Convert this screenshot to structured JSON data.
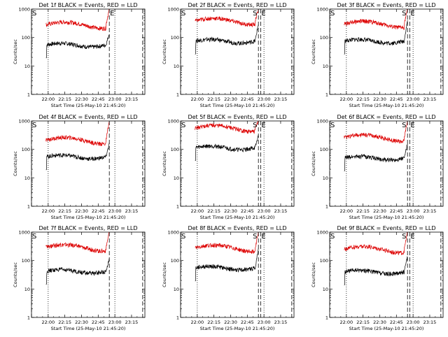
{
  "chart_data": [
    {
      "type": "line",
      "title": "Det 1f BLACK = Events, RED = LLD",
      "xlabel": "Start Time (25-May-10 21:45:20)",
      "ylabel": "Counts/sec",
      "yscale": "log",
      "ylim": [
        1,
        1000
      ],
      "xlim": [
        "21:45",
        "23:27"
      ],
      "x_ticks": [
        "22:00",
        "22:15",
        "22:30",
        "22:45",
        "23:00",
        "23:15"
      ],
      "y_ticks": [
        "1",
        "10",
        "100",
        "1000"
      ],
      "series": [
        {
          "name": "Events",
          "color": "#000000",
          "base": 55,
          "end_value": 140
        },
        {
          "name": "LLD",
          "color": "#dd0000",
          "base": 280,
          "end_value": 1000
        }
      ],
      "markers": [
        {
          "label": "S",
          "time": "21:45",
          "style": "dashed"
        },
        {
          "label": "E",
          "time": "22:55",
          "style": "dashed"
        },
        {
          "time": "22:00",
          "style": "dotted"
        },
        {
          "time": "23:00",
          "style": "dotted"
        },
        {
          "time": "23:25",
          "style": "dashed"
        }
      ]
    },
    {
      "type": "line",
      "title": "Det 2f BLACK = Events, RED = LLD",
      "xlabel": "Start Time (25-May-10 21:45:20)",
      "ylabel": "Counts/sec",
      "yscale": "log",
      "ylim": [
        1,
        1000
      ],
      "xlim": [
        "21:45",
        "23:27"
      ],
      "x_ticks": [
        "22:00",
        "22:15",
        "22:30",
        "22:45",
        "23:00",
        "23:15"
      ],
      "y_ticks": [
        "1",
        "10",
        "100",
        "1000"
      ],
      "series": [
        {
          "name": "Events",
          "color": "#000000",
          "base": 75,
          "end_value": 300
        },
        {
          "name": "LLD",
          "color": "#dd0000",
          "base": 380,
          "end_value": 1000
        }
      ],
      "markers": [
        {
          "label": "S",
          "time": "21:45",
          "style": "dashed"
        },
        {
          "label": "S",
          "time": "22:55",
          "style": "dashed"
        },
        {
          "label": "E",
          "time": "22:57",
          "style": "dashed"
        },
        {
          "time": "22:00",
          "style": "dotted"
        },
        {
          "time": "23:00",
          "style": "dotted"
        },
        {
          "time": "23:25",
          "style": "dashed"
        }
      ]
    },
    {
      "type": "line",
      "title": "Det 3f BLACK = Events, RED = LLD",
      "xlabel": "Start Time (25-May-10 21:45:20)",
      "ylabel": "Counts/sec",
      "yscale": "log",
      "ylim": [
        1,
        1000
      ],
      "xlim": [
        "21:45",
        "23:27"
      ],
      "x_ticks": [
        "22:00",
        "22:15",
        "22:30",
        "22:45",
        "23:00",
        "23:15"
      ],
      "y_ticks": [
        "1",
        "10",
        "100",
        "1000"
      ],
      "series": [
        {
          "name": "Events",
          "color": "#000000",
          "base": 75,
          "end_value": 400
        },
        {
          "name": "LLD",
          "color": "#dd0000",
          "base": 300,
          "end_value": 1000
        }
      ],
      "markers": [
        {
          "label": "S",
          "time": "21:45",
          "style": "dashed"
        },
        {
          "label": "S",
          "time": "22:55",
          "style": "dashed"
        },
        {
          "label": "E",
          "time": "22:57",
          "style": "dashed"
        },
        {
          "time": "22:00",
          "style": "dotted"
        },
        {
          "time": "23:00",
          "style": "dotted"
        },
        {
          "time": "23:25",
          "style": "dashed"
        }
      ]
    },
    {
      "type": "line",
      "title": "Det 4f BLACK = Events, RED = LLD",
      "xlabel": "Start Time (25-May-10 21:45:20)",
      "ylabel": "Counts/sec",
      "yscale": "log",
      "ylim": [
        1,
        1000
      ],
      "xlim": [
        "21:45",
        "23:27"
      ],
      "x_ticks": [
        "22:00",
        "22:15",
        "22:30",
        "22:45",
        "23:00",
        "23:15"
      ],
      "y_ticks": [
        "1",
        "10",
        "100",
        "1000"
      ],
      "series": [
        {
          "name": "Events",
          "color": "#000000",
          "base": 55,
          "end_value": 160
        },
        {
          "name": "LLD",
          "color": "#dd0000",
          "base": 210,
          "end_value": 1000
        }
      ],
      "markers": [
        {
          "label": "S",
          "time": "21:45",
          "style": "dashed"
        },
        {
          "time": "22:55",
          "style": "dashed"
        },
        {
          "time": "22:00",
          "style": "dotted"
        },
        {
          "time": "23:00",
          "style": "dotted"
        },
        {
          "time": "23:25",
          "style": "dashed"
        }
      ]
    },
    {
      "type": "line",
      "title": "Det 5f BLACK = Events, RED = LLD",
      "xlabel": "Start Time (25-May-10 21:45:20)",
      "ylabel": "Counts/sec",
      "yscale": "log",
      "ylim": [
        1,
        1000
      ],
      "xlim": [
        "21:45",
        "23:27"
      ],
      "x_ticks": [
        "22:00",
        "22:15",
        "22:30",
        "22:45",
        "23:00",
        "23:15"
      ],
      "y_ticks": [
        "1",
        "10",
        "100",
        "1000"
      ],
      "series": [
        {
          "name": "Events",
          "color": "#000000",
          "base": 115,
          "end_value": 300
        },
        {
          "name": "LLD",
          "color": "#dd0000",
          "base": 560,
          "end_value": 1000
        }
      ],
      "markers": [
        {
          "label": "S",
          "time": "21:45",
          "style": "dashed"
        },
        {
          "label": "S",
          "time": "22:55",
          "style": "dashed"
        },
        {
          "label": "E",
          "time": "22:57",
          "style": "dashed"
        },
        {
          "time": "22:00",
          "style": "dotted"
        },
        {
          "time": "23:00",
          "style": "dotted"
        },
        {
          "time": "23:25",
          "style": "dashed"
        }
      ]
    },
    {
      "type": "line",
      "title": "Det 6f BLACK = Events, RED = LLD",
      "xlabel": "Start Time (25-May-10 21:45:20)",
      "ylabel": "Counts/sec",
      "yscale": "log",
      "ylim": [
        1,
        1000
      ],
      "xlim": [
        "21:45",
        "23:27"
      ],
      "x_ticks": [
        "22:00",
        "22:15",
        "22:30",
        "22:45",
        "23:00",
        "23:15"
      ],
      "y_ticks": [
        "1",
        "10",
        "100",
        "1000"
      ],
      "series": [
        {
          "name": "Events",
          "color": "#000000",
          "base": 50,
          "end_value": 160
        },
        {
          "name": "LLD",
          "color": "#dd0000",
          "base": 260,
          "end_value": 1000
        }
      ],
      "markers": [
        {
          "label": "S",
          "time": "21:45",
          "style": "dashed"
        },
        {
          "label": "S",
          "time": "22:55",
          "style": "dashed"
        },
        {
          "label": "E",
          "time": "22:57",
          "style": "dashed"
        },
        {
          "time": "22:00",
          "style": "dotted"
        },
        {
          "time": "23:00",
          "style": "dotted"
        },
        {
          "time": "23:25",
          "style": "dashed"
        }
      ]
    },
    {
      "type": "line",
      "title": "Det 7f BLACK = Events, RED = LLD",
      "xlabel": "Start Time (25-May-10 21:45:20)",
      "ylabel": "Counts/sec",
      "yscale": "log",
      "ylim": [
        1,
        1000
      ],
      "xlim": [
        "21:45",
        "23:27"
      ],
      "x_ticks": [
        "22:00",
        "22:15",
        "22:30",
        "22:45",
        "23:00",
        "23:15"
      ],
      "y_ticks": [
        "1",
        "10",
        "100",
        "1000"
      ],
      "series": [
        {
          "name": "Events",
          "color": "#000000",
          "base": 42,
          "end_value": 120
        },
        {
          "name": "LLD",
          "color": "#dd0000",
          "base": 290,
          "end_value": 1000
        }
      ],
      "markers": [
        {
          "label": "S",
          "time": "21:45",
          "style": "dashed"
        },
        {
          "time": "22:55",
          "style": "dashed"
        },
        {
          "time": "22:00",
          "style": "dotted"
        },
        {
          "time": "23:00",
          "style": "dotted"
        },
        {
          "time": "23:25",
          "style": "dashed"
        }
      ]
    },
    {
      "type": "line",
      "title": "Det 8f BLACK = Events, RED = LLD",
      "xlabel": "Start Time (25-May-10 21:45:20)",
      "ylabel": "Counts/sec",
      "yscale": "log",
      "ylim": [
        1,
        1000
      ],
      "xlim": [
        "21:45",
        "23:27"
      ],
      "x_ticks": [
        "22:00",
        "22:15",
        "22:30",
        "22:45",
        "23:00",
        "23:15"
      ],
      "y_ticks": [
        "1",
        "10",
        "100",
        "1000"
      ],
      "series": [
        {
          "name": "Events",
          "color": "#000000",
          "base": 55,
          "end_value": 250
        },
        {
          "name": "LLD",
          "color": "#dd0000",
          "base": 280,
          "end_value": 1000
        }
      ],
      "markers": [
        {
          "label": "S",
          "time": "21:45",
          "style": "dashed"
        },
        {
          "label": "S",
          "time": "22:55",
          "style": "dashed"
        },
        {
          "label": "E",
          "time": "22:57",
          "style": "dashed"
        },
        {
          "time": "22:00",
          "style": "dotted"
        },
        {
          "time": "23:00",
          "style": "dotted"
        },
        {
          "time": "23:25",
          "style": "dashed"
        }
      ]
    },
    {
      "type": "line",
      "title": "Det 9f BLACK = Events, RED = LLD",
      "xlabel": "Start Time (25-May-10 21:45:20)",
      "ylabel": "Counts/sec",
      "yscale": "log",
      "ylim": [
        1,
        1000
      ],
      "xlim": [
        "21:45",
        "23:27"
      ],
      "x_ticks": [
        "22:00",
        "22:15",
        "22:30",
        "22:45",
        "23:00",
        "23:15"
      ],
      "y_ticks": [
        "1",
        "10",
        "100",
        "1000"
      ],
      "series": [
        {
          "name": "Events",
          "color": "#000000",
          "base": 40,
          "end_value": 140
        },
        {
          "name": "LLD",
          "color": "#dd0000",
          "base": 250,
          "end_value": 1000
        }
      ],
      "markers": [
        {
          "label": "S",
          "time": "21:45",
          "style": "dashed"
        },
        {
          "label": "S",
          "time": "22:55",
          "style": "dashed"
        },
        {
          "label": "E",
          "time": "22:57",
          "style": "dashed"
        },
        {
          "time": "22:00",
          "style": "dotted"
        },
        {
          "time": "23:00",
          "style": "dotted"
        },
        {
          "time": "23:25",
          "style": "dashed"
        }
      ]
    }
  ]
}
